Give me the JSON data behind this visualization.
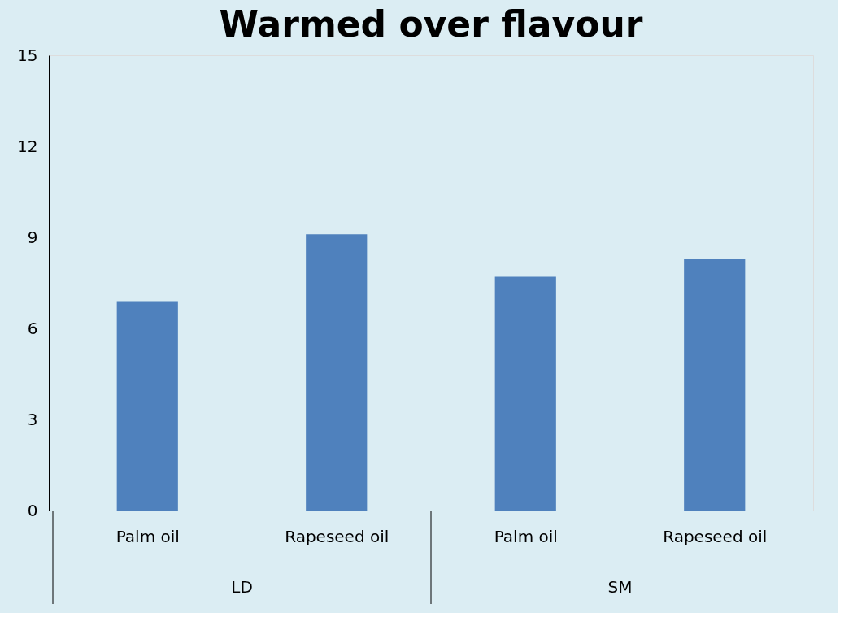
{
  "chart_data": {
    "type": "bar",
    "title": "Warmed over flavour",
    "categories": [
      "Palm oil",
      "Rapeseed oil",
      "Palm oil",
      "Rapeseed oil"
    ],
    "values": [
      6.9,
      9.1,
      7.7,
      8.3
    ],
    "color": "#4f81bd",
    "ylim": [
      0,
      15
    ],
    "yticks": [
      0,
      3,
      6,
      9,
      12,
      15
    ],
    "grid": false,
    "annotations": [
      "LD",
      "SM"
    ]
  }
}
